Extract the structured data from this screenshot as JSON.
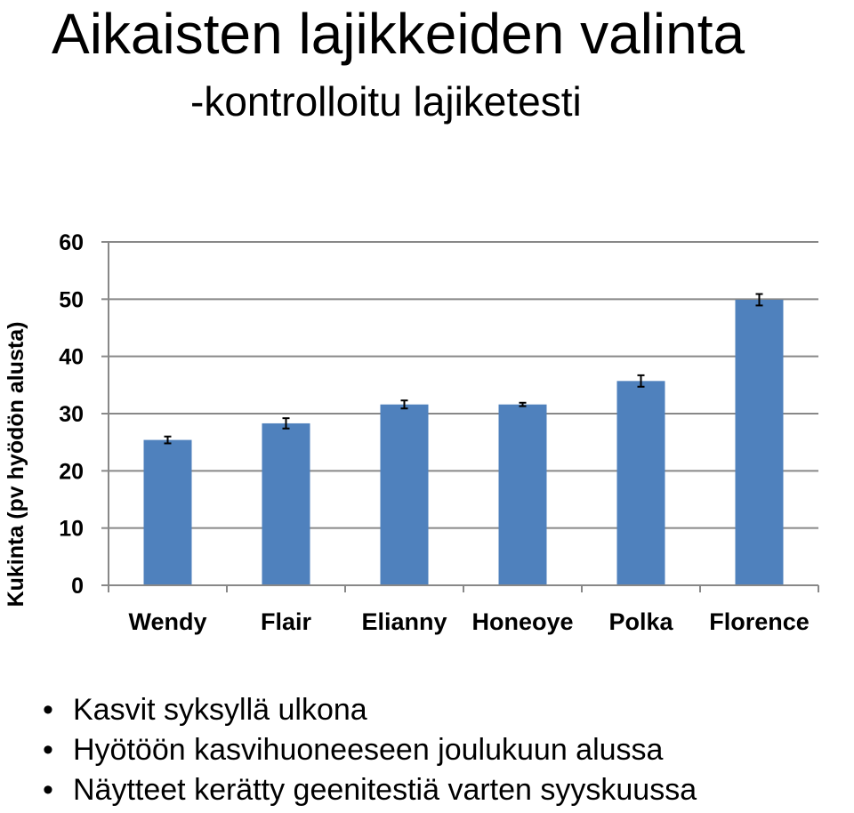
{
  "slide": {
    "title": "Aikaisten lajikkeiden valinta",
    "subtitle": "-kontrolloitu lajiketesti"
  },
  "bullets": [
    "Kasvit syksyllä ulkona",
    "Hyötöön kasvihuoneeseen joulukuun alussa",
    "Näytteet kerätty geenitestiä varten syyskuussa"
  ],
  "chart_data": {
    "type": "bar",
    "categories": [
      "Wendy",
      "Flair",
      "Elianny",
      "Honeoye",
      "Polka",
      "Florence"
    ],
    "values": [
      25.4,
      28.3,
      31.6,
      31.6,
      35.7,
      49.9
    ],
    "errors": [
      0.6,
      0.9,
      0.7,
      0.3,
      1.0,
      1.0
    ],
    "ylabel": "Kukinta (pv hyödön alusta)",
    "xlabel": "",
    "ylim": [
      0,
      60
    ],
    "yticks": [
      0,
      10,
      20,
      30,
      40,
      50,
      60
    ],
    "grid": true,
    "bar_color": "#4f81bd",
    "grid_color": "#888888"
  }
}
